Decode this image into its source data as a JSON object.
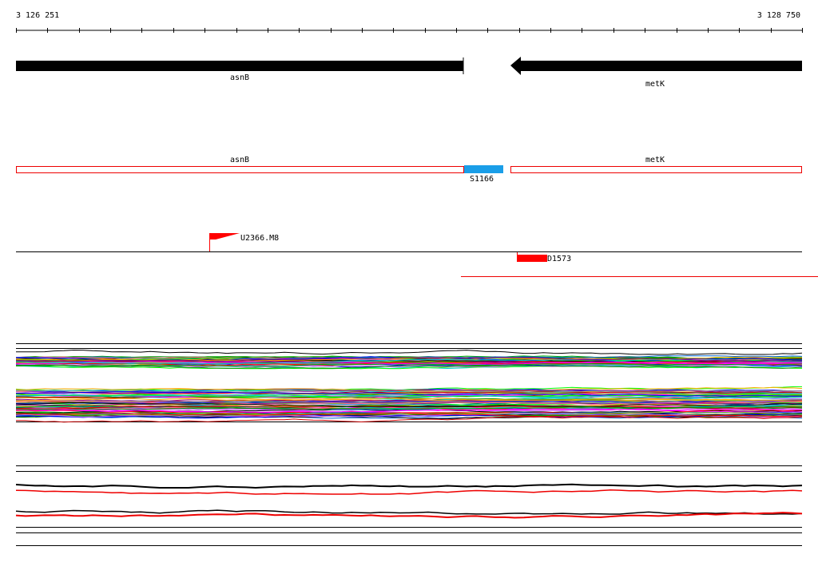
{
  "ruler": {
    "start": "3 126 251",
    "end": "3 128 750"
  },
  "genes": [
    {
      "label": "asnB"
    },
    {
      "label": "metK"
    }
  ],
  "features": [
    {
      "label": "asnB"
    },
    {
      "label": "metK"
    },
    {
      "label": "S1166"
    }
  ],
  "markers": [
    {
      "label": "U2366.M8"
    },
    {
      "label": "D1573"
    }
  ]
}
